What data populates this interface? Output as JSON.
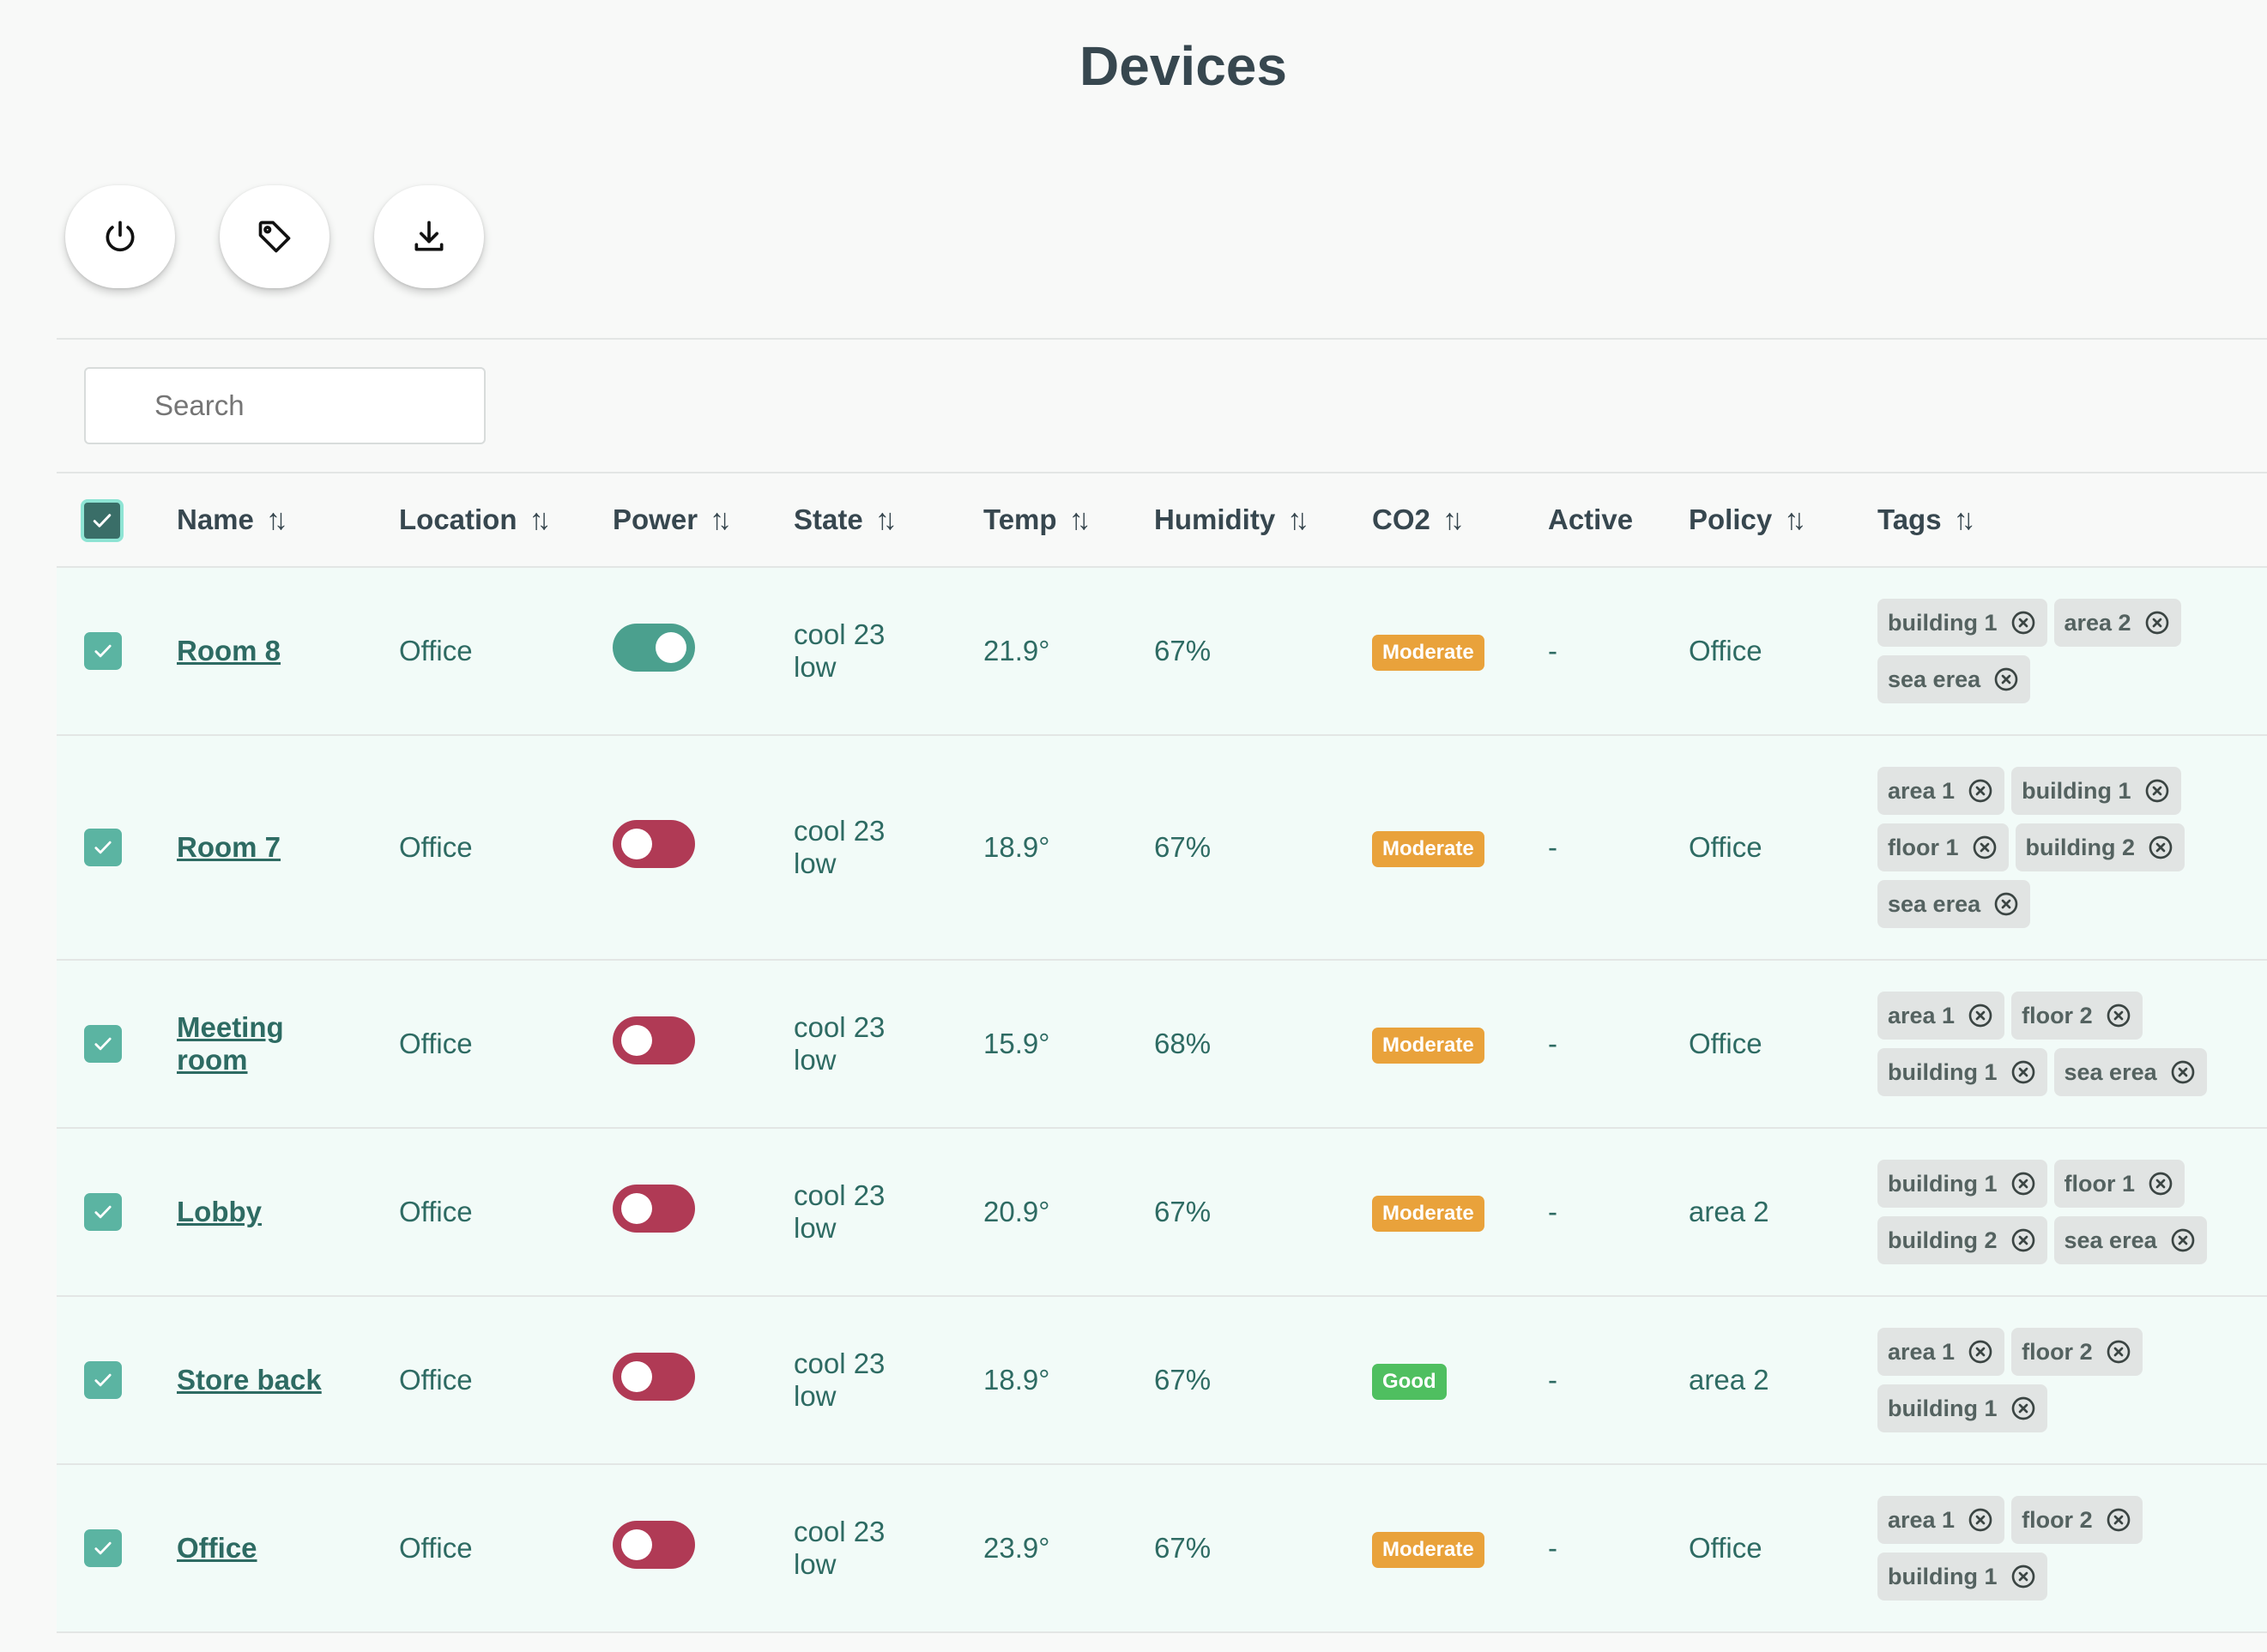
{
  "page": {
    "title": "Devices"
  },
  "toolbar": {
    "buttons": [
      {
        "icon": "power-icon"
      },
      {
        "icon": "tag-icon"
      },
      {
        "icon": "download-icon"
      }
    ]
  },
  "search": {
    "placeholder": "Search"
  },
  "table": {
    "columns": [
      "Name",
      "Location",
      "Power",
      "State",
      "Temp",
      "Humidity",
      "CO2",
      "Active",
      "Policy",
      "Tags"
    ],
    "sort_icon": "↑↓",
    "rows": [
      {
        "name": [
          "Room 8"
        ],
        "location": "Office",
        "power": "on",
        "state": [
          "cool 23",
          "low"
        ],
        "temp": "21.9°",
        "humidity": "67%",
        "co2": "Moderate",
        "active": "-",
        "policy": "Office",
        "tags": [
          "building 1",
          "area 2",
          "sea erea"
        ]
      },
      {
        "name": [
          "Room 7"
        ],
        "location": "Office",
        "power": "off",
        "state": [
          "cool 23",
          "low"
        ],
        "temp": "18.9°",
        "humidity": "67%",
        "co2": "Moderate",
        "active": "-",
        "policy": "Office",
        "tags": [
          "area 1",
          "building 1",
          "floor 1",
          "building 2",
          "sea erea"
        ]
      },
      {
        "name": [
          "Meeting",
          "room"
        ],
        "location": "Office",
        "power": "off",
        "state": [
          "cool 23",
          "low"
        ],
        "temp": "15.9°",
        "humidity": "68%",
        "co2": "Moderate",
        "active": "-",
        "policy": "Office",
        "tags": [
          "area 1",
          "floor 2",
          "building 1",
          "sea erea"
        ]
      },
      {
        "name": [
          "Lobby"
        ],
        "location": "Office",
        "power": "off",
        "state": [
          "cool 23",
          "low"
        ],
        "temp": "20.9°",
        "humidity": "67%",
        "co2": "Moderate",
        "active": "-",
        "policy": "area 2",
        "tags": [
          "building 1",
          "floor 1",
          "building 2",
          "sea erea"
        ]
      },
      {
        "name": [
          "Store back"
        ],
        "location": "Office",
        "power": "off",
        "state": [
          "cool 23",
          "low"
        ],
        "temp": "18.9°",
        "humidity": "67%",
        "co2": "Good",
        "active": "-",
        "policy": "area 2",
        "tags": [
          "area 1",
          "floor 2",
          "building 1"
        ]
      },
      {
        "name": [
          "Office"
        ],
        "location": "Office",
        "power": "off",
        "state": [
          "cool 23",
          "low"
        ],
        "temp": "23.9°",
        "humidity": "67%",
        "co2": "Moderate",
        "active": "-",
        "policy": "Office",
        "tags": [
          "area 1",
          "floor 2",
          "building 1"
        ]
      }
    ]
  },
  "colors": {
    "accent": "#2e6b63",
    "power_on": "#4ba08e",
    "power_off": "#b03a55",
    "co2_moderate": "#e9a23b",
    "co2_good": "#4fbf60",
    "row_bg": "#f2fbf8"
  }
}
